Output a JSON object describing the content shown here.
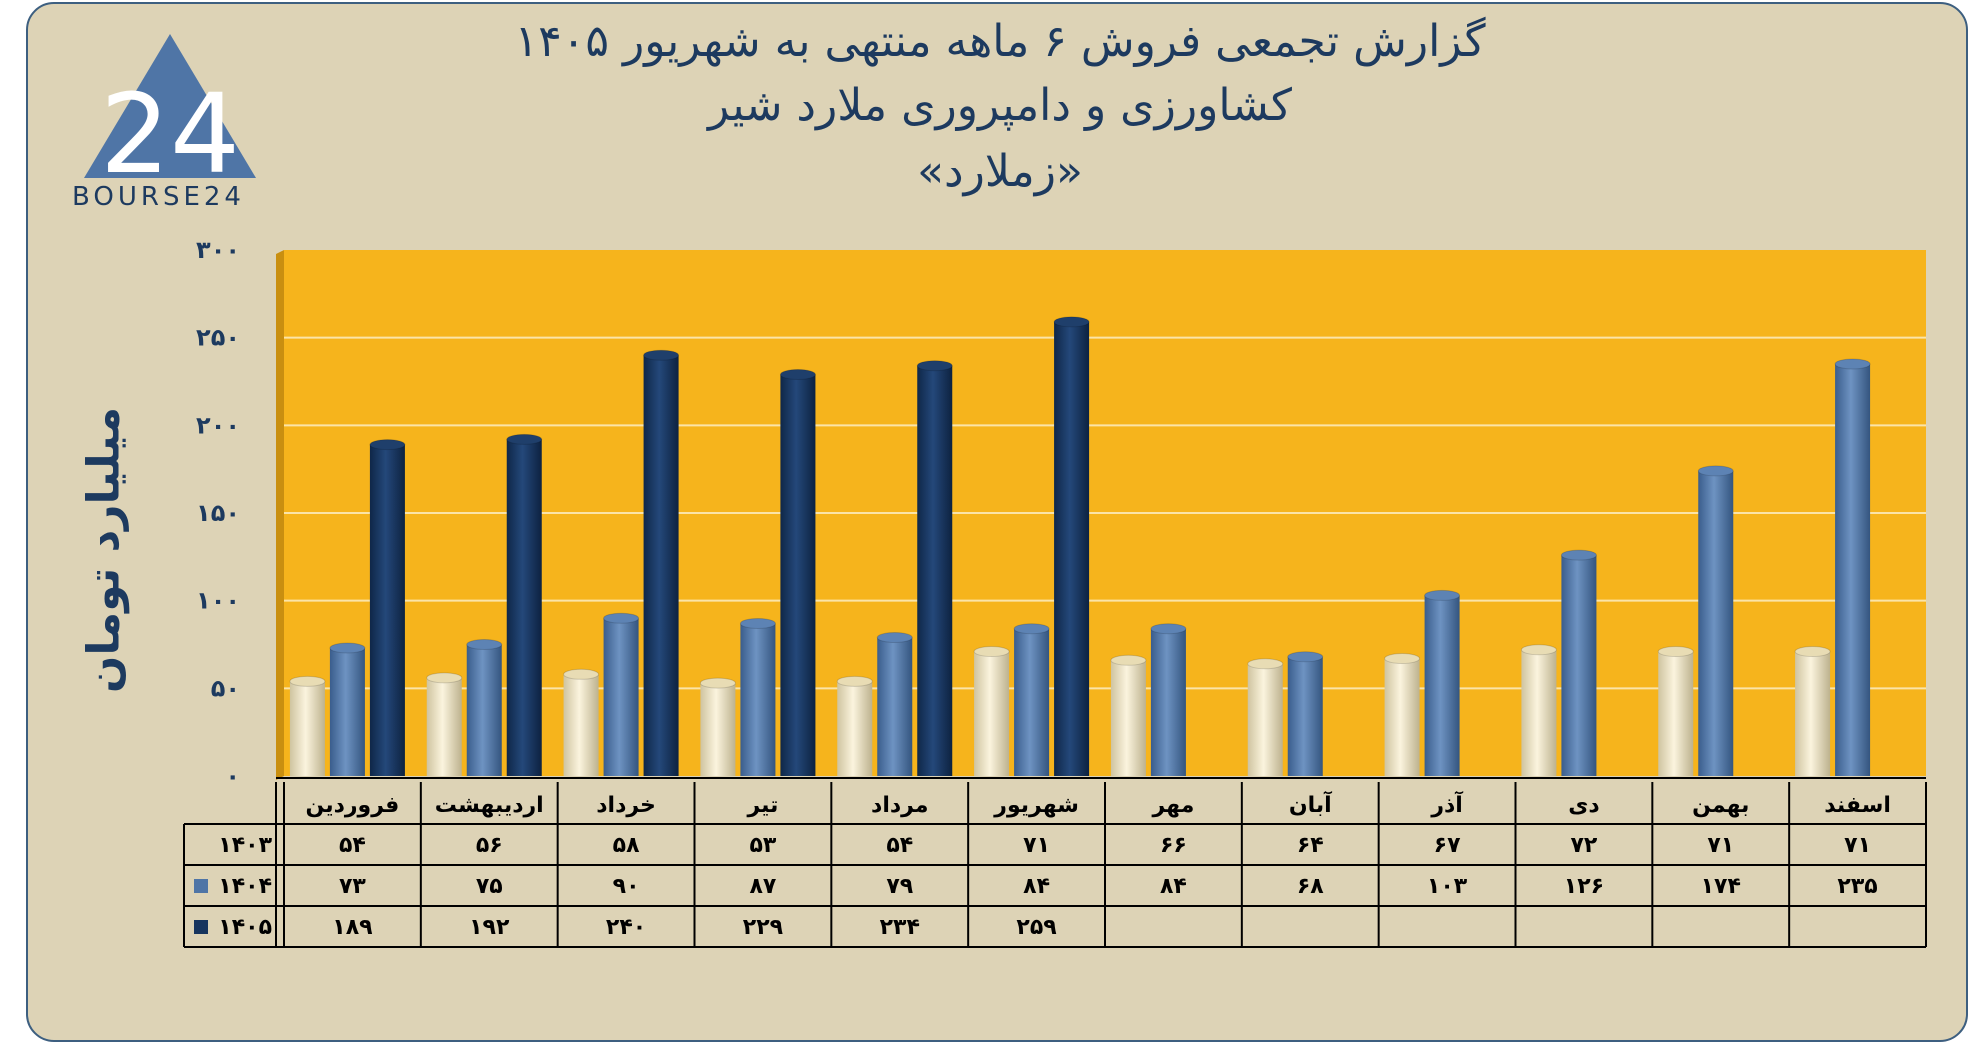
{
  "title": {
    "line1": "گزارش تجمعی فروش ۶ ماهه منتهی به شهریور ۱۴۰۵",
    "line2": "کشاورزی و دامپروری ملارد شیر",
    "line3": "«زملارد»"
  },
  "logo": {
    "text": "BOURSE24",
    "icon": "bourse24-triangle-logo"
  },
  "colors": {
    "background": "#ddd3b6",
    "plot": "#f6b41c",
    "s1403": "#efe5c4",
    "s1404": "#4f75a6",
    "s1405": "#17355e",
    "text": "#1d3a5f"
  },
  "chart_data": {
    "type": "bar",
    "ylabel": "میلیارد تومان",
    "ylim": [
      0,
      300
    ],
    "yticks": [
      0,
      50,
      100,
      150,
      200,
      250,
      300
    ],
    "ytick_labels": [
      "۰",
      "۵۰",
      "۱۰۰",
      "۱۵۰",
      "۲۰۰",
      "۲۵۰",
      "۳۰۰"
    ],
    "grid": true,
    "categories": [
      "فروردین",
      "اردیبهشت",
      "خرداد",
      "تیر",
      "مرداد",
      "شهریور",
      "مهر",
      "آبان",
      "آذر",
      "دی",
      "بهمن",
      "اسفند"
    ],
    "series": [
      {
        "name": "۱۴۰۳",
        "values": [
          54,
          56,
          58,
          53,
          54,
          71,
          66,
          64,
          67,
          72,
          71,
          71
        ],
        "labels": [
          "۵۴",
          "۵۶",
          "۵۸",
          "۵۳",
          "۵۴",
          "۷۱",
          "۶۶",
          "۶۴",
          "۶۷",
          "۷۲",
          "۷۱",
          "۷۱"
        ]
      },
      {
        "name": "۱۴۰۴",
        "values": [
          73,
          75,
          90,
          87,
          79,
          84,
          84,
          68,
          103,
          126,
          174,
          235
        ],
        "labels": [
          "۷۳",
          "۷۵",
          "۹۰",
          "۸۷",
          "۷۹",
          "۸۴",
          "۸۴",
          "۶۸",
          "۱۰۳",
          "۱۲۶",
          "۱۷۴",
          "۲۳۵"
        ]
      },
      {
        "name": "۱۴۰۵",
        "values": [
          189,
          192,
          240,
          229,
          234,
          259,
          null,
          null,
          null,
          null,
          null,
          null
        ],
        "labels": [
          "۱۸۹",
          "۱۹۲",
          "۲۴۰",
          "۲۲۹",
          "۲۳۴",
          "۲۵۹",
          "",
          "",
          "",
          "",
          "",
          ""
        ]
      }
    ]
  }
}
